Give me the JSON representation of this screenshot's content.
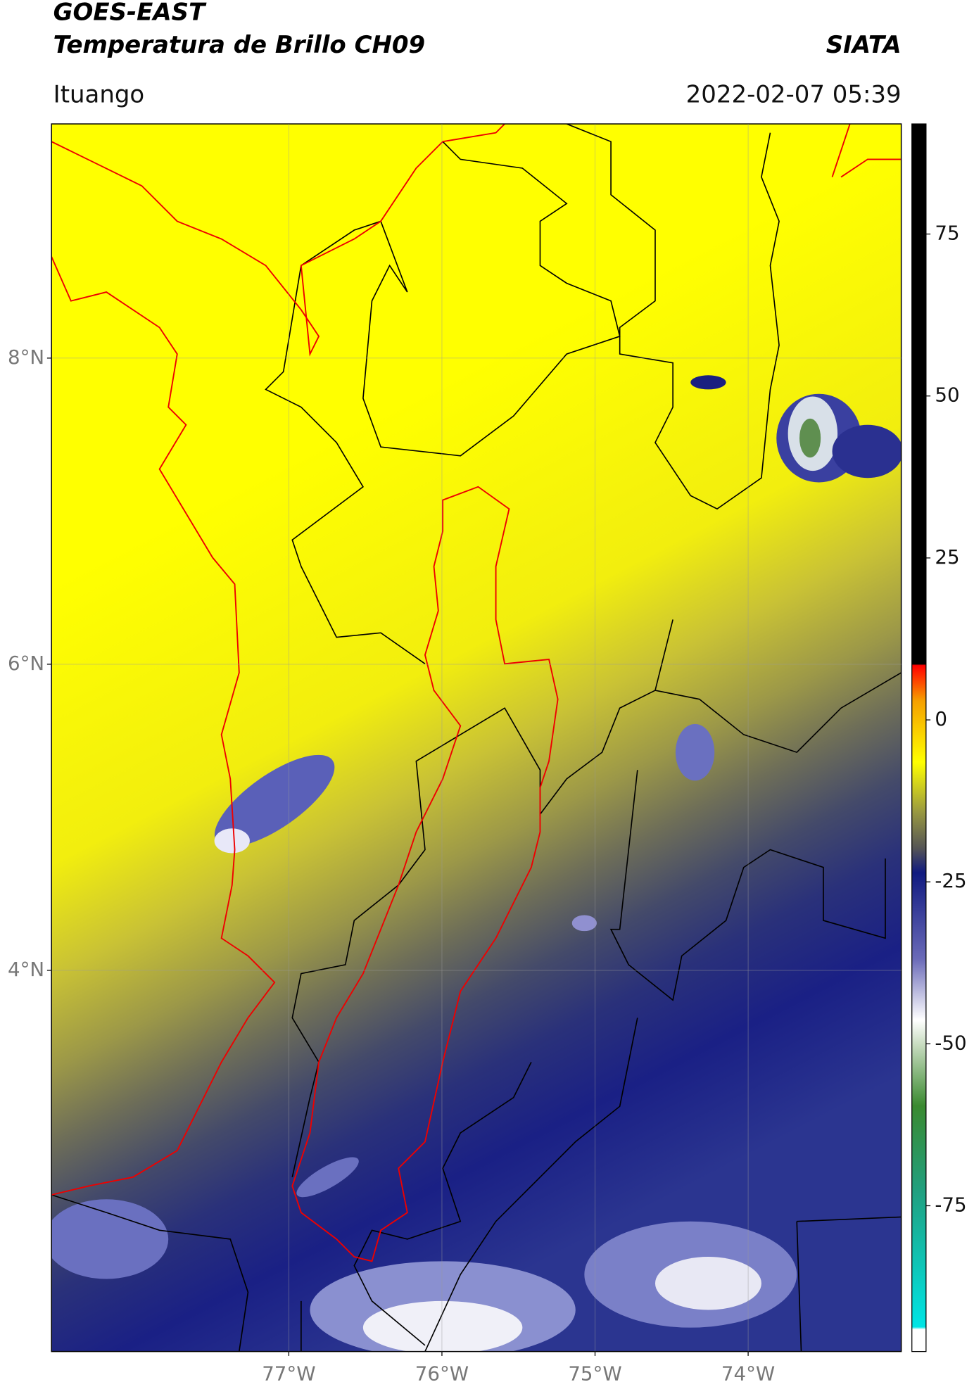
{
  "header": {
    "satellite": "GOES-EAST",
    "product": "Temperatura de Brillo CH09",
    "source": "SIATA",
    "region": "Ituango",
    "datetime": "2022-02-07 05:39"
  },
  "map": {
    "lon_range": [
      -78.55,
      -73.0
    ],
    "lat_range": [
      1.51,
      9.53
    ],
    "lat_ticks": [
      {
        "value": 8,
        "label": "8°N"
      },
      {
        "value": 6,
        "label": "6°N"
      },
      {
        "value": 4,
        "label": "4°N"
      }
    ],
    "lon_ticks": [
      {
        "value": -77,
        "label": "77°W"
      },
      {
        "value": -76,
        "label": "76°W"
      },
      {
        "value": -75,
        "label": "75°W"
      },
      {
        "value": -74,
        "label": "74°W"
      }
    ]
  },
  "colorbar": {
    "range": [
      -97.5,
      92
    ],
    "ticks": [
      75,
      50,
      25,
      0,
      -25,
      -50,
      -75
    ]
  }
}
